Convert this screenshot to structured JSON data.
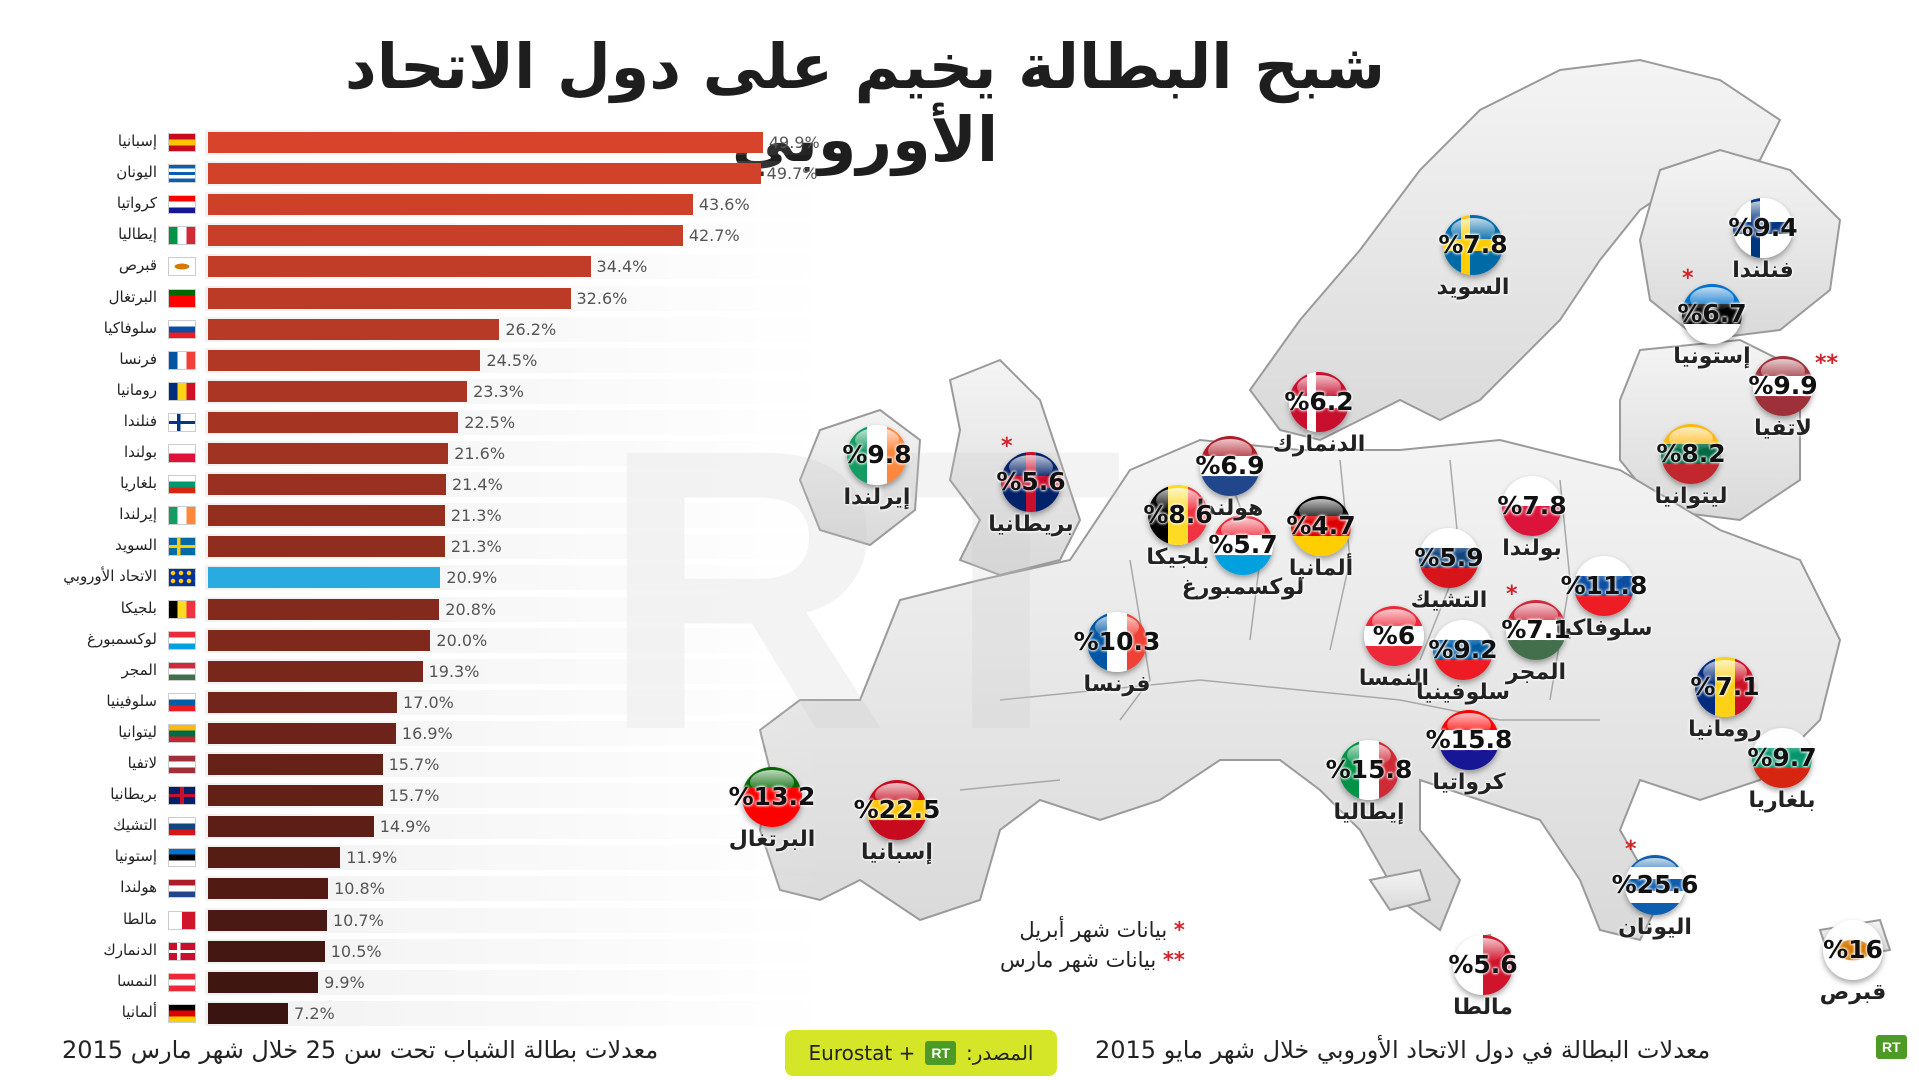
{
  "title": "شبح البطالة يخيم على دول الاتحاد الأوروبي",
  "watermark": "RT",
  "chart_data": [
    {
      "type": "bar",
      "orientation": "horizontal",
      "title": "معدلات بطالة الشباب تحت سن 25 خلال شهر مارس 2015",
      "categories": [
        "إسبانيا",
        "اليونان",
        "كرواتيا",
        "إيطاليا",
        "قبرص",
        "البرتغال",
        "سلوفاكيا",
        "فرنسا",
        "رومانيا",
        "فنلندا",
        "بولندا",
        "بلغاريا",
        "إيرلندا",
        "السويد",
        "الاتحاد الأوروبي",
        "بلجيكا",
        "لوكسمبورغ",
        "المجر",
        "سلوفينيا",
        "ليتوانيا",
        "لاتفيا",
        "بريطانيا",
        "التشيك",
        "إستونيا",
        "هولندا",
        "مالطا",
        "الدنمارك",
        "النمسا",
        "ألمانيا"
      ],
      "values": [
        49.9,
        49.7,
        43.6,
        42.7,
        34.4,
        32.6,
        26.2,
        24.5,
        23.3,
        22.5,
        21.6,
        21.4,
        21.3,
        21.3,
        20.9,
        20.8,
        20.0,
        19.3,
        17.0,
        16.9,
        15.7,
        15.7,
        14.9,
        11.9,
        10.8,
        10.7,
        10.5,
        9.9,
        7.2
      ],
      "value_labels": [
        "49.9%",
        "49.7%",
        "43.6%",
        "42.7%",
        "34.4%",
        "32.6%",
        "26.2%",
        "24.5%",
        "23.3%",
        "22.5%",
        "21.6%",
        "21.4%",
        "21.3%",
        "21.3%",
        "20.9%",
        "20.8%",
        "20.0%",
        "19.3%",
        "17.0%",
        "16.9%",
        "15.7%",
        "15.7%",
        "14.9%",
        "11.9%",
        "10.8%",
        "10.7%",
        "10.5%",
        "9.9%",
        "7.2%"
      ],
      "flags": [
        "es",
        "gr",
        "hr",
        "it",
        "cy",
        "pt",
        "sk",
        "fr",
        "ro",
        "fi",
        "pl",
        "bg",
        "ie",
        "se",
        "eu",
        "be",
        "lu",
        "hu",
        "si",
        "lt",
        "lv",
        "gb",
        "cz",
        "ee",
        "nl",
        "mt",
        "dk",
        "at",
        "de"
      ],
      "highlight_index": 14,
      "highlight_color": "#29aae1",
      "color_start": "#d8442b",
      "color_end": "#3a1410",
      "xlim": [
        0,
        50
      ]
    },
    {
      "type": "map-markers",
      "title": "معدلات البطالة في دول الاتحاد الأوروبي خلال شهر مايو 2015",
      "points": [
        {
          "country": "السويد",
          "label": "%7.8",
          "value": 7.8,
          "flag": "se",
          "note": ""
        },
        {
          "country": "فنلندا",
          "label": "%9.4",
          "value": 9.4,
          "flag": "fi",
          "note": ""
        },
        {
          "country": "إستونيا",
          "label": "%6.7",
          "value": 6.7,
          "flag": "ee",
          "note": "*"
        },
        {
          "country": "لاتفيا",
          "label": "%9.9",
          "value": 9.9,
          "flag": "lv",
          "note": "**"
        },
        {
          "country": "الدنمارك",
          "label": "%6.2",
          "value": 6.2,
          "flag": "dk",
          "note": ""
        },
        {
          "country": "ليتوانيا",
          "label": "%8.2",
          "value": 8.2,
          "flag": "lt",
          "note": ""
        },
        {
          "country": "إيرلندا",
          "label": "%9.8",
          "value": 9.8,
          "flag": "ie",
          "note": ""
        },
        {
          "country": "بريطانيا",
          "label": "%5.6",
          "value": 5.6,
          "flag": "gb",
          "note": "*"
        },
        {
          "country": "هولندا",
          "label": "%6.9",
          "value": 6.9,
          "flag": "nl",
          "note": ""
        },
        {
          "country": "بلجيكا",
          "label": "%8.6",
          "value": 8.6,
          "flag": "be",
          "note": ""
        },
        {
          "country": "لوكسمبورغ",
          "label": "%5.7",
          "value": 5.7,
          "flag": "lu",
          "note": ""
        },
        {
          "country": "ألمانيا",
          "label": "%4.7",
          "value": 4.7,
          "flag": "de",
          "note": ""
        },
        {
          "country": "بولندا",
          "label": "%7.8",
          "value": 7.8,
          "flag": "pl",
          "note": ""
        },
        {
          "country": "التشيك",
          "label": "%5.9",
          "value": 5.9,
          "flag": "cz",
          "note": ""
        },
        {
          "country": "سلوفاكيا",
          "label": "%11.8",
          "value": 11.8,
          "flag": "sk",
          "note": ""
        },
        {
          "country": "فرنسا",
          "label": "%10.3",
          "value": 10.3,
          "flag": "fr",
          "note": ""
        },
        {
          "country": "النمسا",
          "label": "%6",
          "value": 6,
          "flag": "at",
          "note": ""
        },
        {
          "country": "سلوفينيا",
          "label": "%9.2",
          "value": 9.2,
          "flag": "si",
          "note": ""
        },
        {
          "country": "المجر",
          "label": "%7.1",
          "value": 7.1,
          "flag": "hu",
          "note": "*"
        },
        {
          "country": "رومانيا",
          "label": "%7.1",
          "value": 7.1,
          "flag": "ro",
          "note": ""
        },
        {
          "country": "كرواتيا",
          "label": "%15.8",
          "value": 15.8,
          "flag": "hr",
          "note": ""
        },
        {
          "country": "إيطاليا",
          "label": "%15.8",
          "value": 15.8,
          "flag": "it",
          "note": ""
        },
        {
          "country": "بلغاريا",
          "label": "%9.7",
          "value": 9.7,
          "flag": "bg",
          "note": ""
        },
        {
          "country": "البرتغال",
          "label": "%13.2",
          "value": 13.2,
          "flag": "pt",
          "note": ""
        },
        {
          "country": "إسبانيا",
          "label": "%22.5",
          "value": 22.5,
          "flag": "es",
          "note": ""
        },
        {
          "country": "اليونان",
          "label": "%25.6",
          "value": 25.6,
          "flag": "gr",
          "note": "*"
        },
        {
          "country": "مالطا",
          "label": "%5.6",
          "value": 5.6,
          "flag": "mt",
          "note": ""
        },
        {
          "country": "قبرص",
          "label": "%16",
          "value": 16,
          "flag": "cy",
          "note": ""
        }
      ]
    }
  ],
  "legend": {
    "april": {
      "mark": "*",
      "text": "بيانات شهر أبريل"
    },
    "march": {
      "mark": "**",
      "text": "بيانات شهر مارس"
    }
  },
  "footer": {
    "left": "معدلات بطالة الشباب تحت سن 25 خلال شهر مارس 2015",
    "right": "معدلات البطالة في دول الاتحاد الأوروبي خلال شهر مايو 2015",
    "source_label": "المصدر:",
    "source_logo": "RT",
    "source_text": "Eurostat +"
  },
  "flag_colors": {
    "es": [
      "#c60b1e",
      "#ffc400",
      "#c60b1e"
    ],
    "gr": [
      "#0d5eaf",
      "#ffffff",
      "#0d5eaf",
      "#ffffff",
      "#0d5eaf"
    ],
    "hr": [
      "#ff0000",
      "#ffffff",
      "#171796"
    ],
    "it": [
      "#009246",
      "#ffffff",
      "#ce2b37"
    ],
    "cy": [
      "#ffffff",
      "#d57800",
      "#ffffff"
    ],
    "pt": [
      "#006600",
      "#ff0000",
      "#ff0000"
    ],
    "sk": [
      "#ffffff",
      "#0b4ea2",
      "#ee1c25"
    ],
    "fr": [
      "#0055a4",
      "#ffffff",
      "#ef4135"
    ],
    "ro": [
      "#002b7f",
      "#fcd116",
      "#ce1126"
    ],
    "fi": [
      "#ffffff",
      "#003580",
      "#ffffff"
    ],
    "pl": [
      "#ffffff",
      "#dc143c"
    ],
    "bg": [
      "#ffffff",
      "#00966e",
      "#d62612"
    ],
    "ie": [
      "#169b62",
      "#ffffff",
      "#ff883e"
    ],
    "se": [
      "#006aa7",
      "#fecc00",
      "#006aa7"
    ],
    "eu": [
      "#003399",
      "#ffcc00",
      "#003399"
    ],
    "be": [
      "#000000",
      "#fdda24",
      "#ef3340"
    ],
    "lu": [
      "#ed2939",
      "#ffffff",
      "#00a1de"
    ],
    "hu": [
      "#cd2a3e",
      "#ffffff",
      "#436f4d"
    ],
    "si": [
      "#ffffff",
      "#005da4",
      "#ed1c24"
    ],
    "lt": [
      "#fdb913",
      "#006a44",
      "#c1272d"
    ],
    "lv": [
      "#9e3039",
      "#ffffff",
      "#9e3039"
    ],
    "gb": [
      "#012169",
      "#ffffff",
      "#c8102e"
    ],
    "cz": [
      "#ffffff",
      "#11457e",
      "#d7141a"
    ],
    "ee": [
      "#0072ce",
      "#000000",
      "#ffffff"
    ],
    "nl": [
      "#ae1c28",
      "#ffffff",
      "#21468b"
    ],
    "mt": [
      "#ffffff",
      "#cf142b"
    ],
    "dk": [
      "#c8102e",
      "#ffffff",
      "#c8102e"
    ],
    "at": [
      "#ed2939",
      "#ffffff",
      "#ed2939"
    ],
    "de": [
      "#000000",
      "#dd0000",
      "#ffce00"
    ]
  }
}
